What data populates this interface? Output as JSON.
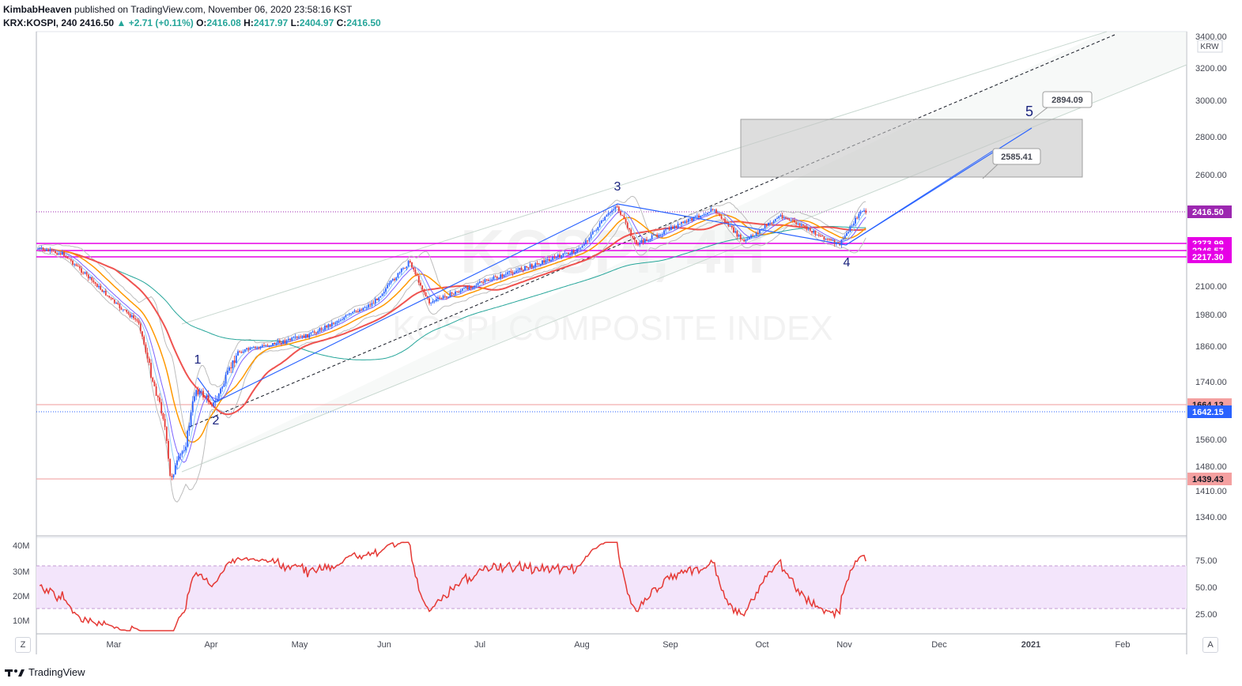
{
  "header": {
    "author": "KimbabHeaven",
    "published_text": "published on TradingView.com, November 06, 2020 23:58:16 KST",
    "symbol": "KRX:KOSPI, 240",
    "last": "2416.50",
    "change": "+2.71 (+0.11%)",
    "open_label": "O:",
    "open": "2416.08",
    "high_label": "H:",
    "high": "2417.97",
    "low_label": "L:",
    "low": "2404.97",
    "close_label": "C:",
    "close": "2416.50"
  },
  "watermark": {
    "symbol": "KOSPI, 4H",
    "name": "KOSPI COMPOSITE INDEX"
  },
  "currency": "KRW",
  "price_axis": [
    "3400.00",
    "3200.00",
    "3000.00",
    "2800.00",
    "2600.00",
    "2100.00",
    "1980.00",
    "1860.00",
    "1740.00",
    "1560.00",
    "1480.00",
    "1410.00",
    "1340.00"
  ],
  "price_tags": [
    {
      "text": "2416.50",
      "color": "#9c27b0",
      "bg": "#9c27b0",
      "fg": "#ffffff"
    },
    {
      "text": "2273.99",
      "color": "#e040fb",
      "bg": "#e600e6",
      "fg": "#ffffff"
    },
    {
      "text": "2246.57",
      "color": "#e040fb",
      "bg": "#e600e6",
      "fg": "#ffffff"
    },
    {
      "text": "2217.30",
      "color": "#e040fb",
      "bg": "#e600e6",
      "fg": "#ffffff"
    },
    {
      "text": "1664.13",
      "color": "#ef9a9a",
      "bg": "#f4a0a0",
      "fg": "#131722"
    },
    {
      "text": "1642.15",
      "color": "#2962ff",
      "bg": "#2962ff",
      "fg": "#ffffff"
    },
    {
      "text": "1439.43",
      "color": "#ef9a9a",
      "bg": "#f4a0a0",
      "fg": "#131722"
    }
  ],
  "target_labels": [
    "2894.09",
    "2585.41"
  ],
  "wave_labels": [
    "1",
    "2",
    "3",
    "4",
    "5"
  ],
  "volume_axis": [
    "40M",
    "30M",
    "20M",
    "10M"
  ],
  "rsi_axis": [
    "75.00",
    "50.00",
    "25.00"
  ],
  "time_axis": [
    "Mar",
    "Apr",
    "May",
    "Jun",
    "Jul",
    "Aug",
    "Sep",
    "Oct",
    "Nov",
    "Dec",
    "2021",
    "Feb"
  ],
  "buttons": {
    "left": "Z",
    "right": "A"
  },
  "footer": {
    "brand": "TradingView"
  },
  "colors": {
    "candle_up": "#2962ff",
    "candle_down": "#e53935",
    "rsi": "#e53935",
    "rsi_band": "#f3e5fb",
    "box": "#d9d9d9"
  },
  "chart_data": {
    "type": "candlestick",
    "instrument": "KRX:KOSPI",
    "timeframe": "240",
    "ylim": [
      1300,
      3420
    ],
    "price_path": [
      {
        "date": "2020-01-20",
        "price": 2220
      },
      {
        "date": "2020-02-03",
        "price": 2260
      },
      {
        "date": "2020-02-14",
        "price": 2230
      },
      {
        "date": "2020-02-24",
        "price": 2110
      },
      {
        "date": "2020-03-02",
        "price": 2020
      },
      {
        "date": "2020-03-09",
        "price": 1950
      },
      {
        "date": "2020-03-13",
        "price": 1760
      },
      {
        "date": "2020-03-17",
        "price": 1620
      },
      {
        "date": "2020-03-19",
        "price": 1439.43
      },
      {
        "date": "2020-03-24",
        "price": 1550
      },
      {
        "date": "2020-03-27",
        "price": 1717
      },
      {
        "date": "2020-04-02",
        "price": 1664.13
      },
      {
        "date": "2020-04-10",
        "price": 1840
      },
      {
        "date": "2020-05-04",
        "price": 1900
      },
      {
        "date": "2020-05-28",
        "price": 2030
      },
      {
        "date": "2020-06-09",
        "price": 2200
      },
      {
        "date": "2020-06-15",
        "price": 2030
      },
      {
        "date": "2020-06-30",
        "price": 2108
      },
      {
        "date": "2020-07-31",
        "price": 2250
      },
      {
        "date": "2020-08-13",
        "price": 2450
      },
      {
        "date": "2020-08-20",
        "price": 2270
      },
      {
        "date": "2020-09-15",
        "price": 2430
      },
      {
        "date": "2020-09-25",
        "price": 2280
      },
      {
        "date": "2020-10-08",
        "price": 2400
      },
      {
        "date": "2020-10-30",
        "price": 2267
      },
      {
        "date": "2020-11-06",
        "price": 2416.5
      }
    ],
    "projection": [
      {
        "label": "4",
        "price": 2267
      },
      {
        "label": "5",
        "target": 2894.09
      },
      {
        "label": "alt",
        "target": 2585.41
      }
    ],
    "target_box": {
      "from": 2585.41,
      "to": 2894.09
    },
    "horizontal_levels": [
      2416.5,
      2273.99,
      2246.57,
      2217.3,
      1664.13,
      1642.15,
      1439.43
    ],
    "rsi": {
      "upper": 70,
      "lower": 30,
      "last": 64
    }
  }
}
